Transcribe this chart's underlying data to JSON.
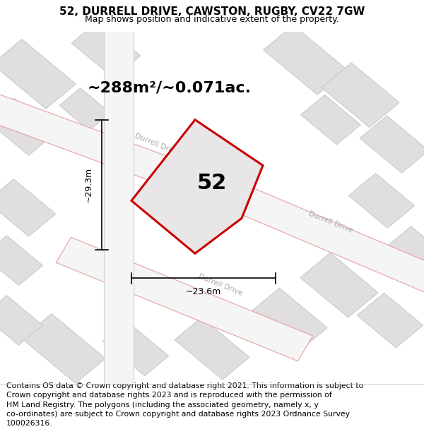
{
  "title": "52, DURRELL DRIVE, CAWSTON, RUGBY, CV22 7GW",
  "subtitle": "Map shows position and indicative extent of the property.",
  "footer": "Contains OS data © Crown copyright and database right 2021. This information is subject to\nCrown copyright and database rights 2023 and is reproduced with the permission of\nHM Land Registry. The polygons (including the associated geometry, namely x, y\nco-ordinates) are subject to Crown copyright and database rights 2023 Ordnance Survey\n100026316.",
  "area_text": "~288m²/~0.071ac.",
  "number_label": "52",
  "width_label": "~23.6m",
  "height_label": "~29.3m",
  "bg_color": "#eeeeee",
  "plot_stroke": "#cc0000",
  "plot_fill": "#e8e6e6",
  "road_fill": "#ffffff",
  "road_edge": "#cccccc",
  "pink_road_color": "#e8aaaa",
  "road_label_color": "#aaaaaa",
  "title_fontsize": 11,
  "subtitle_fontsize": 9,
  "footer_fontsize": 7.8,
  "area_fontsize": 16,
  "num_fontsize": 22,
  "dim_fontsize": 9
}
